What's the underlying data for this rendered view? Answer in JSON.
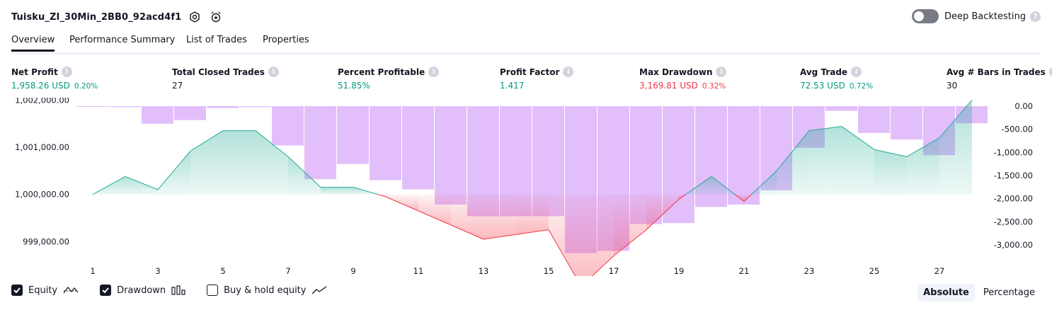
{
  "header": {
    "strategy_name": "Tuisku_ZI_30Min_2BB0_92acd4f1",
    "icons": [
      "settings-icon",
      "alarm-add-icon"
    ],
    "deep_backtesting_label": "Deep Backtesting",
    "deep_backtesting_enabled": false
  },
  "tabs": [
    {
      "label": "Overview",
      "active": true
    },
    {
      "label": "Performance Summary",
      "active": false
    },
    {
      "label": "List of Trades",
      "active": false
    },
    {
      "label": "Properties",
      "active": false
    }
  ],
  "metrics": [
    {
      "label": "Net Profit",
      "value": "1,958.26 USD",
      "pct": "0.20%",
      "color": "#089981"
    },
    {
      "label": "Total Closed Trades",
      "value": "27",
      "pct": "",
      "color": "#131722"
    },
    {
      "label": "Percent Profitable",
      "value": "51.85%",
      "pct": "",
      "color": "#089981"
    },
    {
      "label": "Profit Factor",
      "value": "1.417",
      "pct": "",
      "color": "#089981"
    },
    {
      "label": "Max Drawdown",
      "value": "3,169.81 USD",
      "pct": "0.32%",
      "color": "#f23645"
    },
    {
      "label": "Avg Trade",
      "value": "72.53 USD",
      "pct": "0.72%",
      "color": "#089981"
    },
    {
      "label": "Avg # Bars in Trades",
      "value": "30",
      "pct": "",
      "color": "#131722"
    }
  ],
  "chart_data": {
    "type": "line",
    "x": [
      1,
      2,
      3,
      4,
      5,
      6,
      7,
      8,
      9,
      10,
      11,
      12,
      13,
      14,
      15,
      16,
      17,
      18,
      19,
      20,
      21,
      22,
      23,
      24,
      25,
      26,
      27,
      28
    ],
    "x_tick_labels": [
      "1",
      "3",
      "5",
      "7",
      "9",
      "11",
      "13",
      "15",
      "17",
      "19",
      "21",
      "23",
      "25",
      "27"
    ],
    "left_axis_ticks": [
      "1,002,000.00",
      "1,001,000.00",
      "1,000,000.00",
      "999,000.00"
    ],
    "right_axis_ticks": [
      "0.00",
      "-500.00",
      "-1,000.00",
      "-1,500.00",
      "-2,000.00",
      "-2,500.00",
      "-3,000.00"
    ],
    "ylim_equity": [
      998600,
      1002050
    ],
    "ylim_drawdown": [
      -3200,
      0
    ],
    "baseline_equity": 1000000,
    "series": [
      {
        "name": "Equity",
        "color_positive": "#22ab94",
        "color_negative": "#f23645",
        "values": [
          1000000,
          1000380,
          1000100,
          1000920,
          1001350,
          1001350,
          1000800,
          1000150,
          1000150,
          999950,
          999650,
          999350,
          999050,
          999150,
          999250,
          998050,
          998700,
          999250,
          999900,
          1000380,
          999850,
          1000500,
          1001350,
          1001440,
          1000950,
          1000800,
          1001200,
          1002000
        ]
      },
      {
        "name": "Drawdown",
        "color": "#ce93f8",
        "values": [
          -10,
          -20,
          -380,
          -300,
          -40,
          -20,
          -850,
          -1580,
          -1250,
          -1600,
          -1800,
          -2130,
          -2380,
          -2380,
          -2380,
          -3180,
          -3130,
          -2550,
          -2530,
          -2180,
          -2130,
          -1820,
          -900,
          -100,
          -580,
          -720,
          -1060,
          -370
        ]
      }
    ]
  },
  "legend": {
    "items": [
      {
        "label": "Equity",
        "checked": true,
        "icon": "equity-line-icon"
      },
      {
        "label": "Drawdown",
        "checked": true,
        "icon": "drawdown-bars-icon"
      },
      {
        "label": "Buy & hold equity",
        "checked": false,
        "icon": "buy-hold-line-icon"
      }
    ]
  },
  "modes": [
    {
      "label": "Absolute",
      "active": true
    },
    {
      "label": "Percentage",
      "active": false
    }
  ]
}
